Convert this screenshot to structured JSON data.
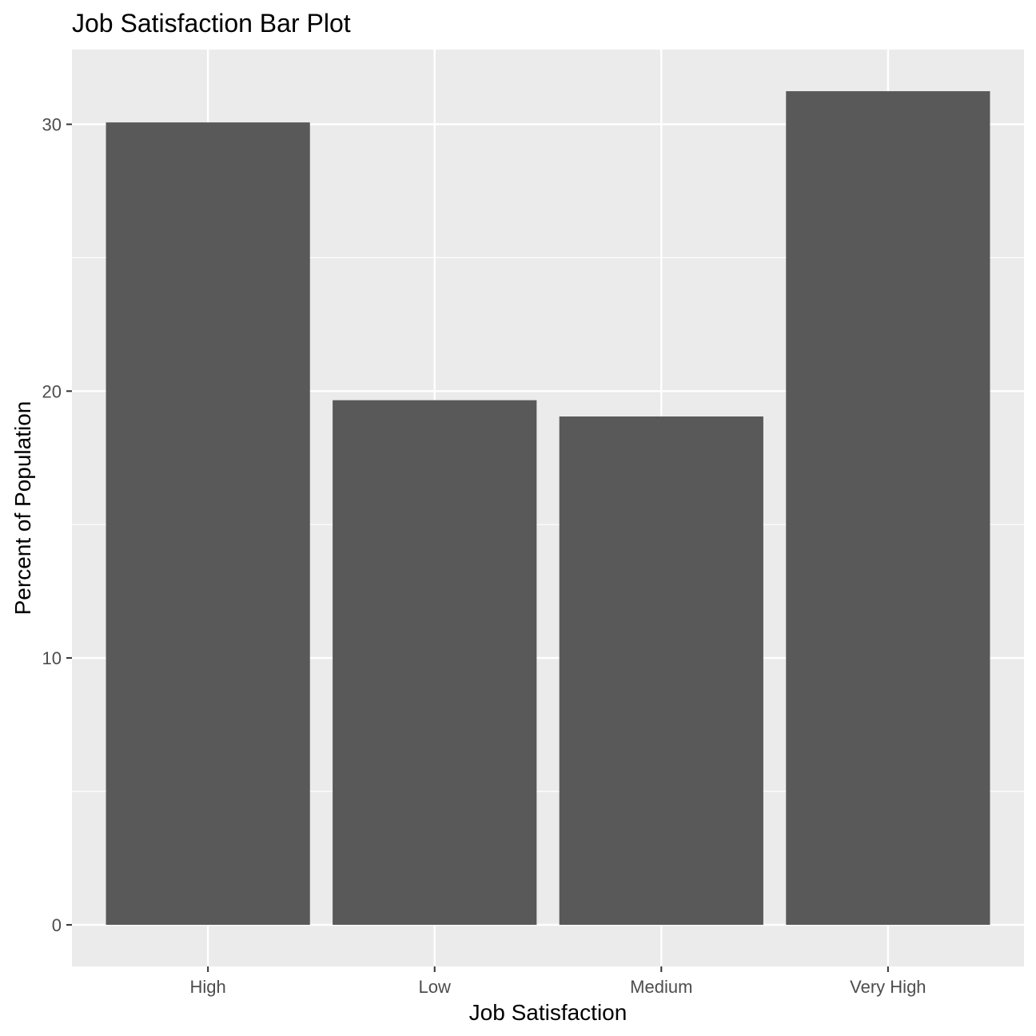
{
  "chart_data": {
    "type": "bar",
    "title": "Job Satisfaction Bar Plot",
    "xlabel": "Job Satisfaction",
    "ylabel": "Percent of Population",
    "categories": [
      "High",
      "Low",
      "Medium",
      "Very High"
    ],
    "values": [
      30.07,
      19.66,
      19.05,
      31.24
    ],
    "ylim": [
      -1.56,
      32.8
    ],
    "yticks": [
      0,
      10,
      20,
      30
    ],
    "ytick_labels": [
      "0",
      "10",
      "20",
      "30"
    ],
    "minor_yticks": [
      5,
      15,
      25
    ],
    "grid": true,
    "legend": "none",
    "colors": {
      "panel": "#ebebeb",
      "bar": "#595959",
      "grid": "#ffffff",
      "tick": "#333333"
    }
  }
}
